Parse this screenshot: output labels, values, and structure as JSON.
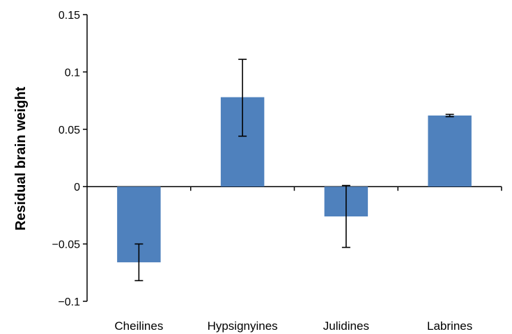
{
  "chart_data": {
    "type": "bar",
    "title": "",
    "xlabel": "",
    "ylabel": "Residual brain weight",
    "categories": [
      "Cheilines",
      "Hypsignyines",
      "Julidines",
      "Labrines"
    ],
    "values": [
      -0.066,
      0.078,
      -0.026,
      0.062
    ],
    "error_low": [
      -0.082,
      0.044,
      -0.053,
      0.061
    ],
    "error_high": [
      -0.05,
      0.111,
      0.001,
      0.063
    ],
    "ylim": [
      -0.1,
      0.15
    ],
    "yticks": [
      0.15,
      0.1,
      0.05,
      0,
      -0.05,
      -0.1
    ],
    "ytick_labels": [
      "0.15",
      "0.1",
      "0.05",
      "0",
      "−0.05",
      "−0.1"
    ],
    "bar_color": "#4f81bd",
    "grid": false,
    "legend": "none"
  }
}
